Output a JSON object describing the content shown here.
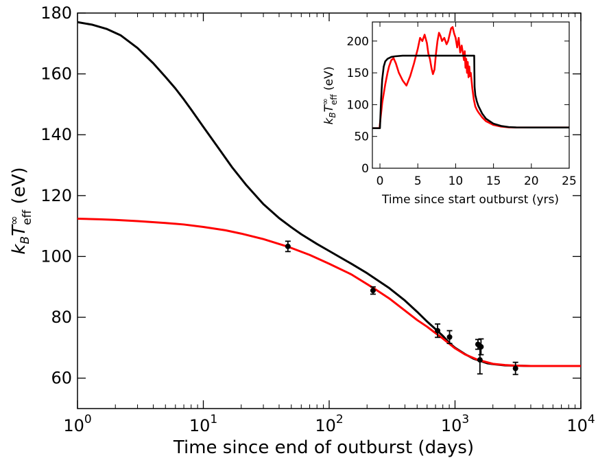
{
  "chart_data": [
    {
      "id": "main",
      "type": "line",
      "xscale": "log",
      "xlim": [
        1,
        10000
      ],
      "ylim": [
        50,
        180
      ],
      "x_ticks": [
        {
          "value": 1,
          "base": "10",
          "exp": "0"
        },
        {
          "value": 10,
          "base": "10",
          "exp": "1"
        },
        {
          "value": 100,
          "base": "10",
          "exp": "2"
        },
        {
          "value": 1000,
          "base": "10",
          "exp": "3"
        },
        {
          "value": 10000,
          "base": "10",
          "exp": "4"
        }
      ],
      "y_ticks": [
        "60",
        "80",
        "100",
        "120",
        "140",
        "160",
        "180"
      ],
      "xlabel": "Time since end of outburst (days)",
      "ylabel": {
        "k": "k",
        "B": "B",
        "T": "T",
        "inf": "∞",
        "eff": "eff",
        "unit": " (eV)"
      },
      "series": [
        {
          "name": "black model",
          "color": "#000000",
          "x": [
            1,
            1.3,
            1.7,
            2.2,
            3,
            4,
            5,
            6,
            7,
            8,
            10,
            13,
            17,
            22,
            30,
            40,
            50,
            60,
            80,
            100,
            150,
            200,
            300,
            400,
            500,
            600,
            700,
            800,
            900,
            1000,
            1200,
            1400,
            1600,
            1800,
            2000,
            2500,
            3000,
            4000,
            6000,
            10000
          ],
          "y": [
            177,
            176.2,
            174.8,
            172.7,
            168.5,
            163.5,
            159,
            155.2,
            151.6,
            148.3,
            142.6,
            136,
            129.2,
            123.4,
            117.2,
            112.6,
            109.6,
            107.3,
            104.1,
            101.8,
            97.6,
            94.5,
            89.6,
            85.5,
            81.8,
            78.6,
            76.1,
            73.9,
            71.6,
            70,
            67.9,
            66.4,
            65.6,
            64.9,
            64.6,
            64.2,
            64.1,
            64,
            64,
            64
          ]
        },
        {
          "name": "red model",
          "color": "#ff0000",
          "x": [
            1,
            1.5,
            2,
            3,
            5,
            7,
            10,
            15,
            20,
            30,
            47,
            70,
            100,
            150,
            225,
            300,
            400,
            500,
            600,
            700,
            800,
            900,
            1000,
            1200,
            1500,
            2000,
            2500,
            3000,
            4000,
            6000,
            10000
          ],
          "y": [
            112.4,
            112.2,
            112,
            111.6,
            111,
            110.5,
            109.7,
            108.6,
            107.5,
            105.7,
            103.2,
            100.5,
            97.6,
            94.1,
            89.6,
            86.2,
            82.2,
            79.1,
            76.9,
            74.8,
            73,
            71.3,
            69.8,
            67.8,
            66.1,
            64.7,
            64.3,
            64.1,
            64,
            64,
            64
          ]
        }
      ],
      "errorbars": {
        "color": "#000000",
        "points": [
          {
            "x": 47,
            "y": 103.3,
            "yerr": 1.7
          },
          {
            "x": 223,
            "y": 88.8,
            "yerr": 1.2
          },
          {
            "x": 727,
            "y": 75.6,
            "yerr": 2.2
          },
          {
            "x": 905,
            "y": 73.5,
            "yerr": 2.1
          },
          {
            "x": 1522,
            "y": 71.1,
            "yerr": 1.6
          },
          {
            "x": 1578,
            "y": 66.0,
            "yerr": 4.6
          },
          {
            "x": 1609,
            "y": 70.3,
            "yerr": 2.6
          },
          {
            "x": 3024,
            "y": 63.2,
            "yerr": 2.0
          }
        ]
      }
    },
    {
      "id": "inset",
      "type": "line",
      "xlim": [
        -1,
        25
      ],
      "ylim": [
        0,
        230
      ],
      "x_ticks": [
        "0",
        "5",
        "10",
        "15",
        "20",
        "25"
      ],
      "y_ticks": [
        "0",
        "50",
        "100",
        "150",
        "200"
      ],
      "xlabel": "Time since start outburst (yrs)",
      "ylabel": {
        "k": "k",
        "B": "B",
        "T": "T",
        "inf": "∞",
        "eff": "eff",
        "unit": " (eV)"
      },
      "series": [
        {
          "name": "red (observed-driven)",
          "color": "#ff0000",
          "x": [
            -1,
            -0.05,
            0,
            0.3,
            0.7,
            1.0,
            1.2,
            1.5,
            1.8,
            2.1,
            2.5,
            3.0,
            3.5,
            4.0,
            4.5,
            5.0,
            5.3,
            5.6,
            5.9,
            6.2,
            6.4,
            6.6,
            6.8,
            7.0,
            7.2,
            7.4,
            7.6,
            7.8,
            8.0,
            8.2,
            8.5,
            8.8,
            9.0,
            9.2,
            9.4,
            9.6,
            9.8,
            10.0,
            10.2,
            10.4,
            10.6,
            10.8,
            11.0,
            11.1,
            11.2,
            11.3,
            11.4,
            11.5,
            11.6,
            11.7,
            11.8,
            11.9,
            12.0,
            12.1,
            12.2,
            12.4,
            12.6,
            12.8,
            13.0,
            13.5,
            14.0,
            15.0,
            16.0,
            17.0,
            18.0,
            20.0,
            22.0,
            25.0
          ],
          "y": [
            63,
            63,
            70,
            103,
            132,
            150,
            160,
            170,
            173,
            165,
            150,
            138,
            130,
            145,
            165,
            188,
            205,
            200,
            210,
            197,
            180,
            172,
            158,
            148,
            155,
            180,
            200,
            213,
            208,
            200,
            205,
            195,
            200,
            210,
            220,
            222,
            212,
            205,
            190,
            205,
            182,
            193,
            178,
            170,
            184,
            158,
            172,
            150,
            167,
            143,
            160,
            145,
            150,
            138,
            126,
            108,
            97,
            92,
            88,
            80,
            74,
            68,
            65.5,
            64.3,
            64,
            64,
            64,
            64
          ]
        },
        {
          "name": "black (constant)",
          "color": "#000000",
          "x": [
            -1,
            -0.05,
            0,
            0.15,
            0.3,
            0.5,
            0.7,
            1.0,
            1.5,
            2.0,
            3.0,
            5.0,
            8.0,
            11.0,
            12.45,
            12.5,
            12.6,
            12.8,
            13.0,
            13.5,
            14.0,
            15.0,
            16.0,
            17.0,
            18.0,
            20.0,
            22.0,
            25.0
          ],
          "y": [
            63,
            63,
            63,
            108,
            140,
            160,
            168,
            172,
            175,
            176,
            177,
            177,
            177,
            177,
            177,
            128,
            115,
            105,
            98,
            86,
            78,
            70,
            66.5,
            64.8,
            64.2,
            64,
            64,
            64
          ]
        }
      ]
    }
  ]
}
